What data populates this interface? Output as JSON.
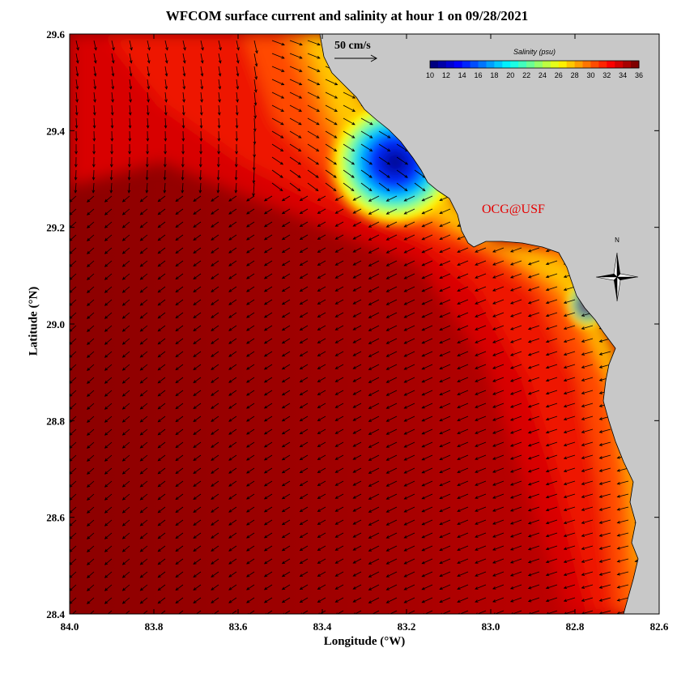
{
  "title": "WFCOM surface current and salinity at hour 1 on 09/28/2021",
  "xlabel": "Longitude (°W)",
  "ylabel": "Latitude (°N)",
  "x_ticks": [
    "84.0",
    "83.8",
    "83.6",
    "83.4",
    "83.2",
    "83.0",
    "82.8",
    "82.6"
  ],
  "y_ticks": [
    "28.4",
    "28.6",
    "28.8",
    "29.0",
    "29.2",
    "29.4",
    "29.6"
  ],
  "scale_arrow_label": "50 cm/s",
  "colorbar": {
    "title": "Salinity (psu)",
    "tick_labels": [
      "10",
      "12",
      "14",
      "16",
      "18",
      "20",
      "22",
      "24",
      "26",
      "28",
      "30",
      "32",
      "34",
      "36"
    ]
  },
  "watermark": "OCG@USF",
  "compass_label": "N",
  "colors": {
    "land": "#c8c8c8",
    "salinity_min": "#00008c",
    "salinity_max": "#8c0000"
  }
}
